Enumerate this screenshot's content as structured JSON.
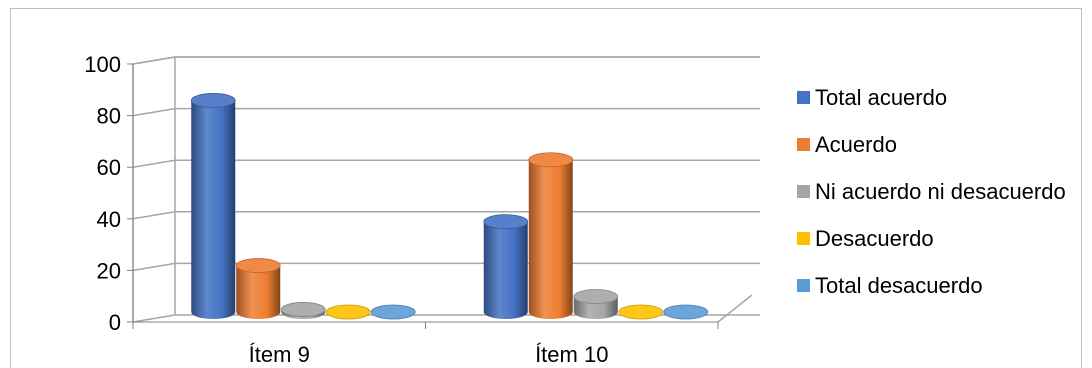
{
  "chart_data": {
    "type": "bar",
    "categories": [
      "Ítem 9",
      "Ítem 10"
    ],
    "series": [
      {
        "name": "Total acuerdo",
        "values": [
          82,
          35
        ],
        "color": "#4472C4"
      },
      {
        "name": "Acuerdo",
        "values": [
          18,
          59
        ],
        "color": "#ED7D31"
      },
      {
        "name": "Ni acuerdo ni desacuerdo",
        "values": [
          1,
          6
        ],
        "color": "#A5A5A5"
      },
      {
        "name": "Desacuerdo",
        "values": [
          0,
          0
        ],
        "color": "#FFC000"
      },
      {
        "name": "Total desacuerdo",
        "values": [
          0,
          0
        ],
        "color": "#5B9BD5"
      }
    ],
    "ylim": [
      0,
      100
    ],
    "yticks": [
      "0",
      "20",
      "40",
      "60",
      "80",
      "100"
    ],
    "grid": true,
    "legend": "right"
  }
}
